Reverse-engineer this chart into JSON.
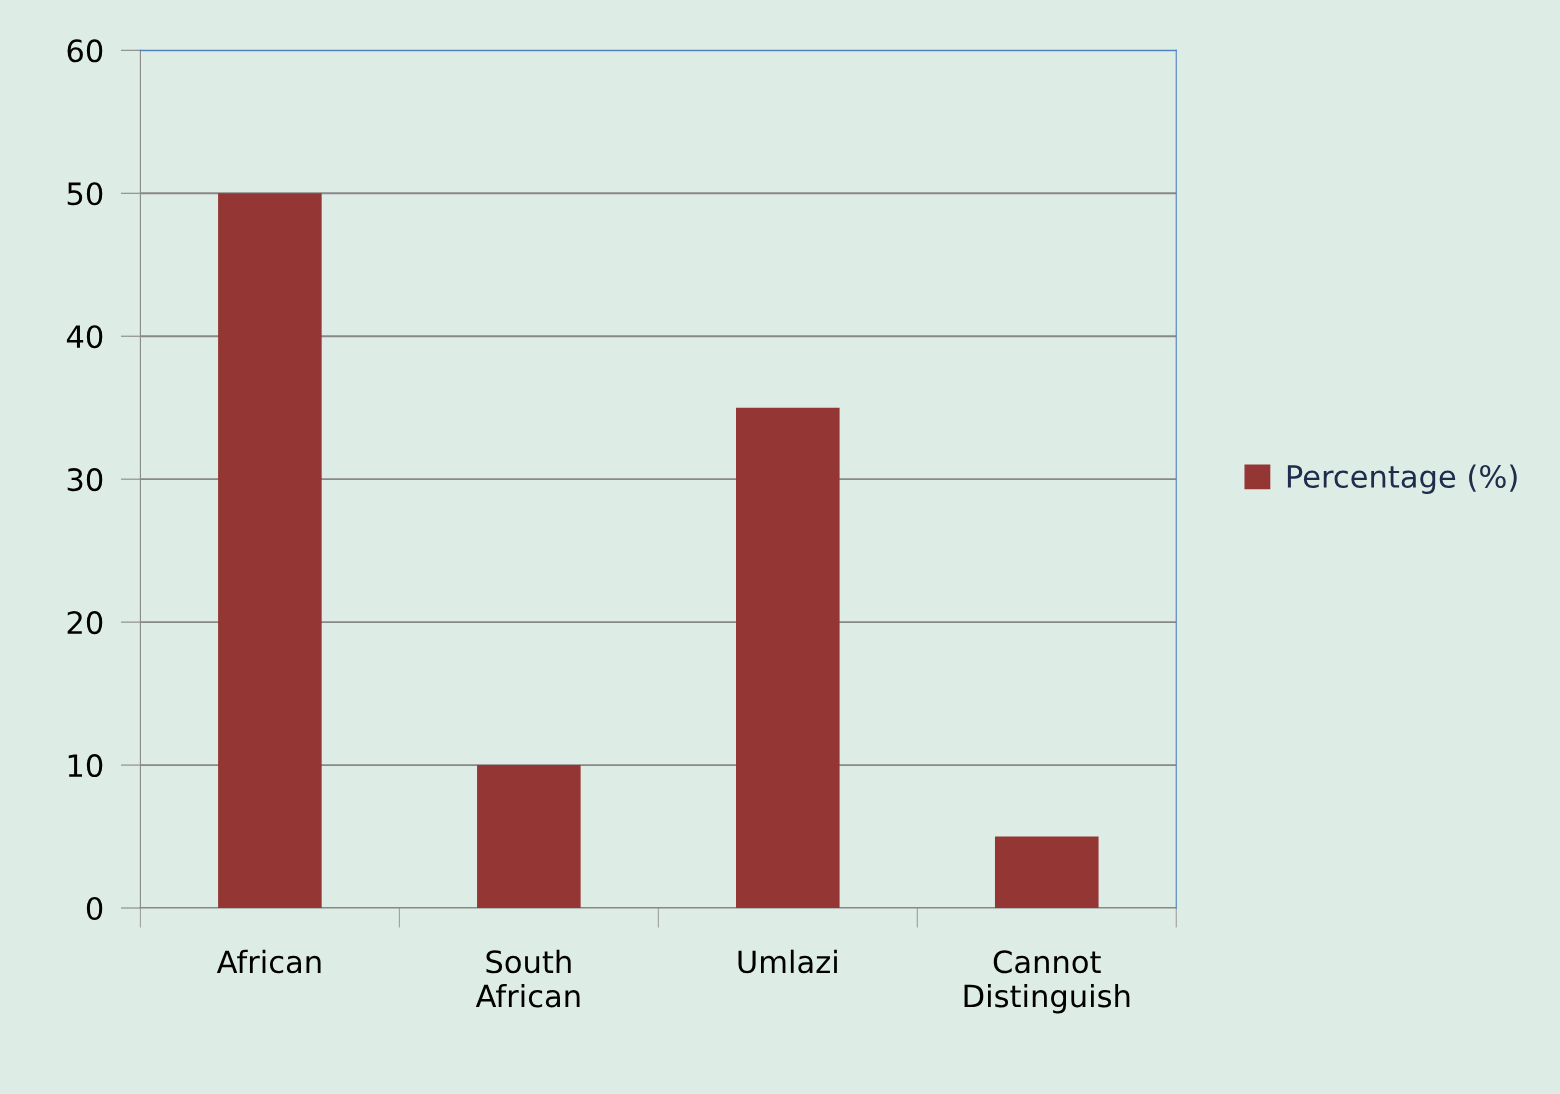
{
  "chart_data": {
    "type": "bar",
    "categories": [
      "African",
      "South\nAfrican",
      "Umlazi",
      "Cannot\nDistinguish"
    ],
    "series": [
      {
        "name": "Percentage (%)",
        "color": "#943634",
        "values": [
          50,
          10,
          35,
          5
        ]
      }
    ],
    "ylim": [
      0,
      60
    ],
    "yticks": [
      0,
      10,
      20,
      30,
      40,
      50,
      60
    ],
    "grid": "y",
    "legend": "right"
  }
}
